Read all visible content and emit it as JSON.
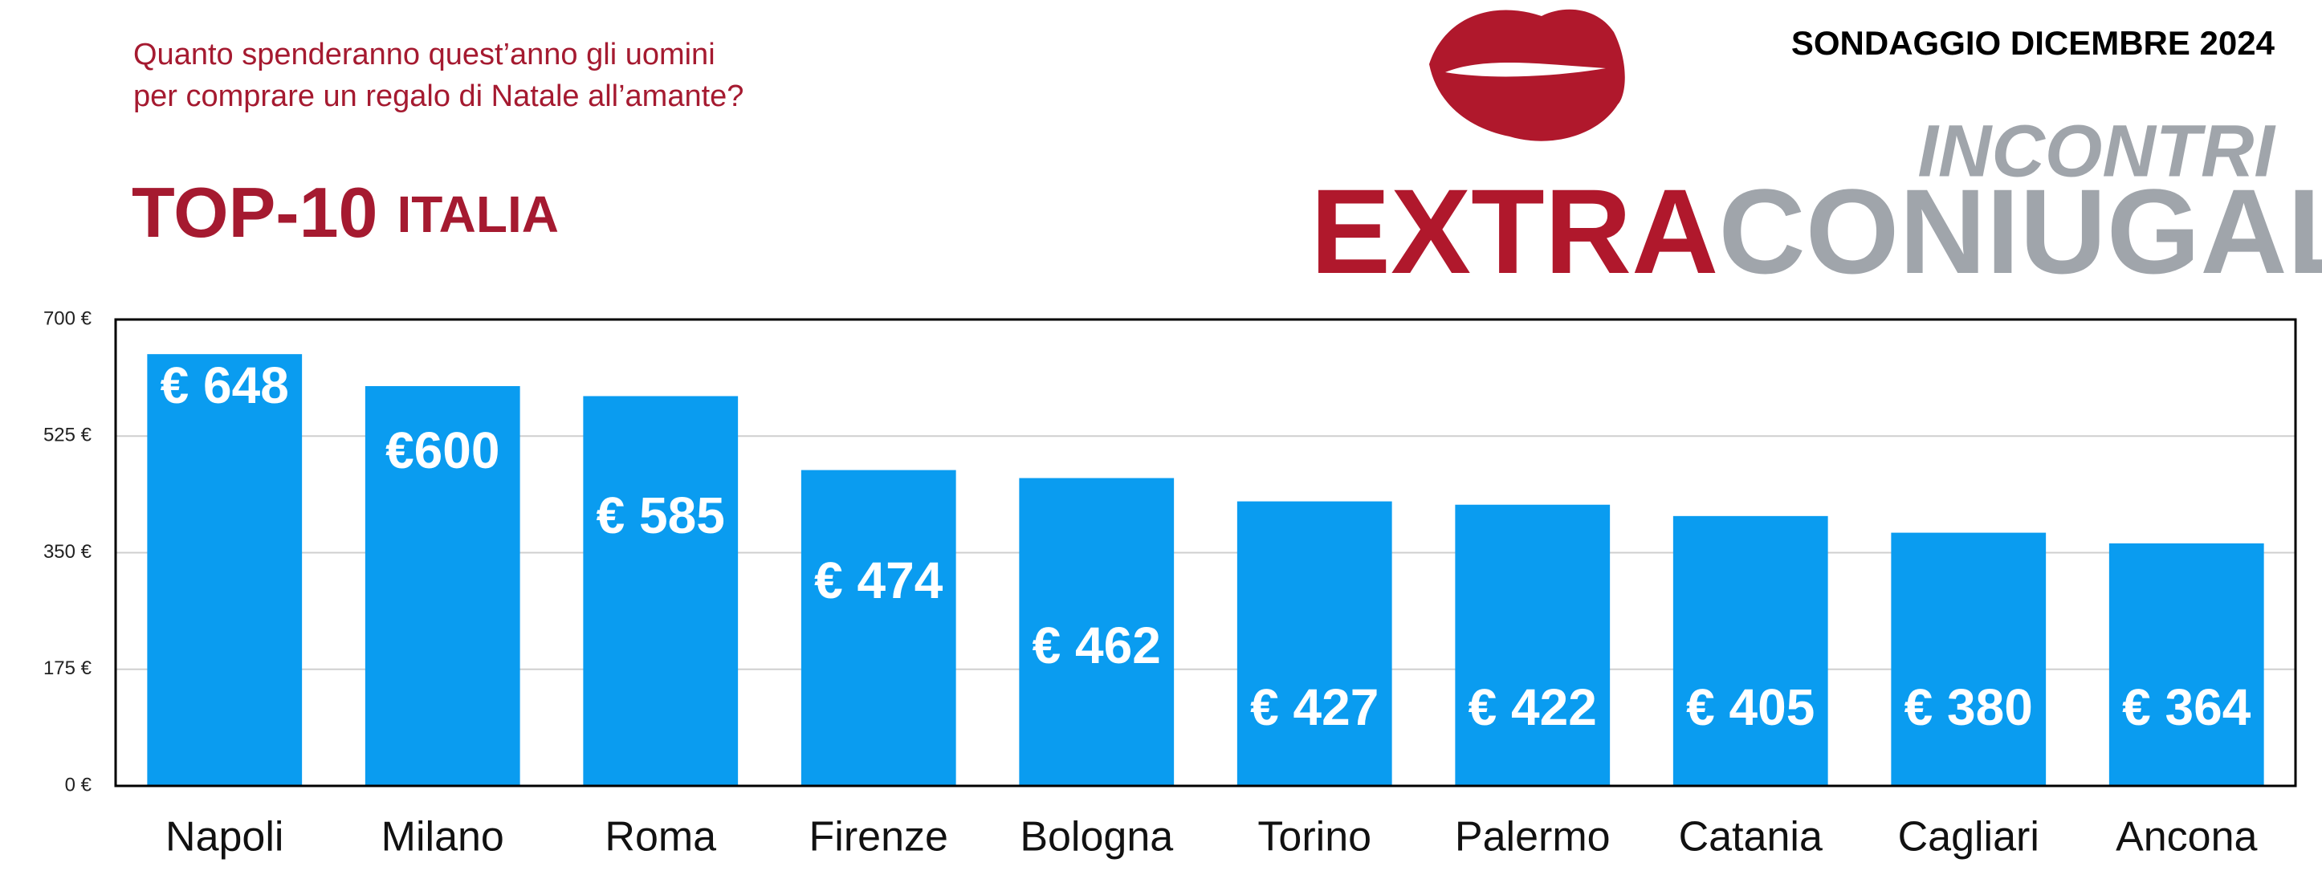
{
  "header": {
    "survey": "SONDAGGIO DICEMBRE 2024",
    "logo_top": "INCONTRI",
    "logo_left": "EXTRA",
    "logo_right": "CONIUGALI"
  },
  "chart_data": {
    "type": "bar",
    "subtitle": [
      "Quanto spenderanno quest’anno gli uomini",
      "per comprare un regalo di Natale all’amante?"
    ],
    "title": "TOP-10",
    "title_suffix": "ITALIA",
    "categories": [
      "Napoli",
      "Milano",
      "Roma",
      "Firenze",
      "Bologna",
      "Torino",
      "Palermo",
      "Catania",
      "Cagliari",
      "Ancona"
    ],
    "values": [
      648,
      600,
      585,
      474,
      462,
      427,
      422,
      405,
      380,
      364
    ],
    "value_labels": [
      "€ 648",
      "€600",
      "€ 585",
      "€ 474",
      "€ 462",
      "€ 427",
      "€ 422",
      "€ 405",
      "€ 380",
      "€ 364"
    ],
    "color": "#0a9cf0",
    "ylim": [
      0,
      700
    ],
    "yticks": [
      {
        "value": 0,
        "label": "0 €"
      },
      {
        "value": 175,
        "label": "175 €"
      },
      {
        "value": 350,
        "label": "350 €"
      },
      {
        "value": 525,
        "label": "525 €"
      },
      {
        "value": 700,
        "label": "700 €"
      }
    ],
    "grid": true
  }
}
